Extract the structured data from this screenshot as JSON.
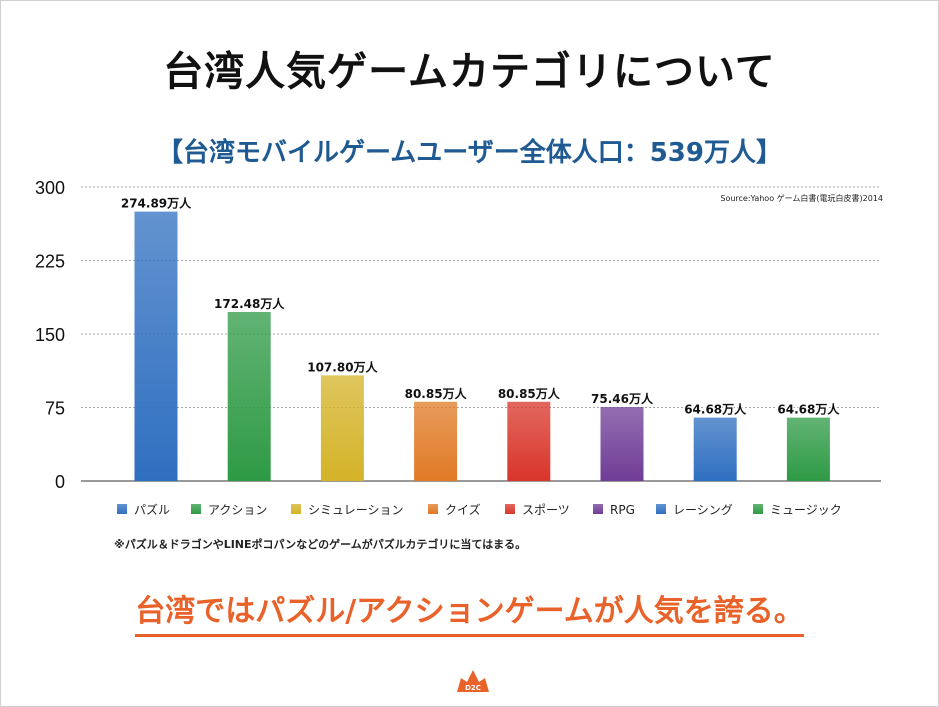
{
  "title": "台湾人気ゲームカテゴリについて",
  "subtitle": "【台湾モバイルゲームユーザー全体人口：539万人】",
  "source": "Source:Yahoo ゲーム白書(電玩白皮書)2014",
  "note": "※パズル＆ドラゴンやLINEポコパンなどのゲームがパズルカテゴリに当てはまる。",
  "conclusion": "台湾ではパズル/アクションゲームが人気を誇る。",
  "logo_text": "D2C",
  "chart_data": {
    "type": "bar",
    "categories": [
      "パズル",
      "アクション",
      "シミュレーション",
      "クイズ",
      "スポーツ",
      "RPG",
      "レーシング",
      "ミュージック"
    ],
    "values": [
      274.89,
      172.48,
      107.8,
      80.85,
      80.85,
      75.46,
      64.68,
      64.68
    ],
    "value_labels": [
      "274.89万人",
      "172.48万人",
      "107.80万人",
      "80.85万人",
      "80.85万人",
      "75.46万人",
      "64.68万人",
      "64.68万人"
    ],
    "colors": [
      "#2f6fc0",
      "#2e9a45",
      "#d4b328",
      "#e07a25",
      "#d9352a",
      "#6f3d96",
      "#2f6fc0",
      "#2e9a45"
    ],
    "yticks": [
      0,
      75,
      150,
      225,
      300
    ],
    "ylim": [
      0,
      300
    ],
    "grid": true,
    "legend_position": "bottom"
  }
}
